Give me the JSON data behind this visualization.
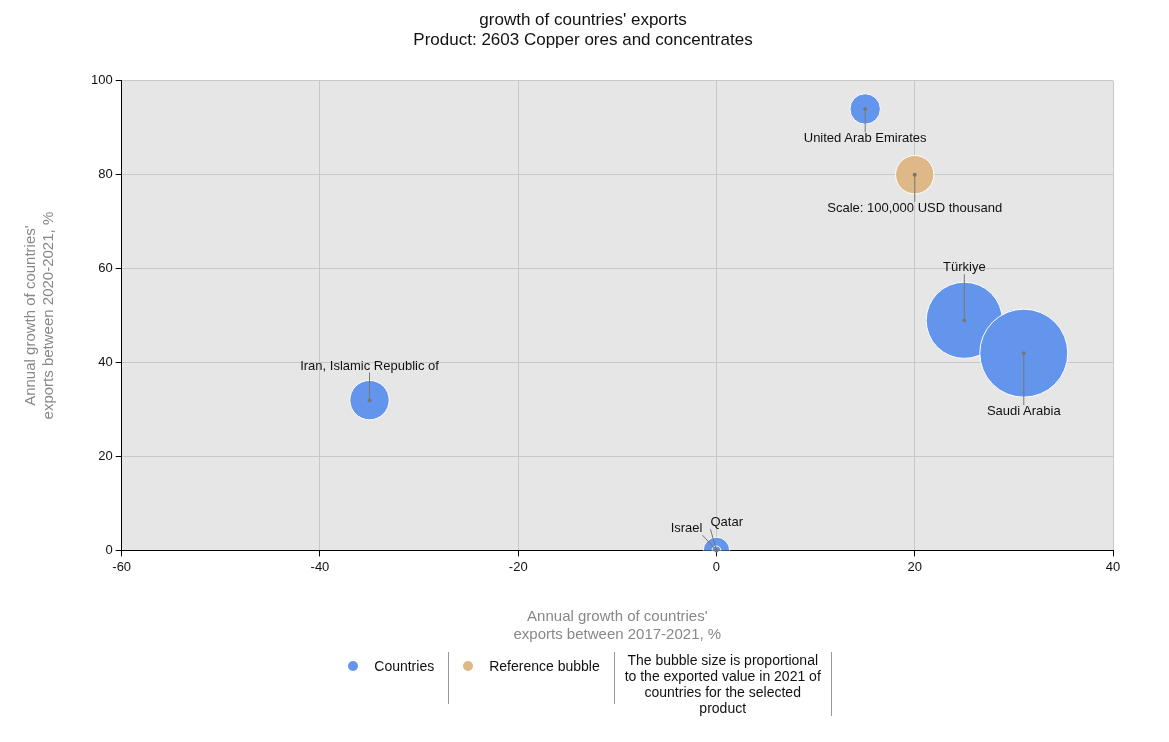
{
  "chart_data": {
    "type": "bubble",
    "title": "growth of countries' exports",
    "subtitle": "Product: 2603 Copper ores and concentrates",
    "xlabel": "Annual growth of countries' exports between 2017-2021, %",
    "ylabel": "Annual growth of countries' exports between 2020-2021, %",
    "xlim": [
      -60,
      40
    ],
    "xticks": [
      -60,
      -40,
      -20,
      0,
      20,
      40
    ],
    "ylim": [
      0,
      100
    ],
    "yticks": [
      0,
      20,
      40,
      60,
      80,
      100
    ],
    "grid": true,
    "legend": "bottom",
    "series": [
      {
        "name": "Countries",
        "color": "#6495ed",
        "x": [
          15,
          25,
          31,
          -35,
          0,
          0
        ],
        "values": [
          94,
          49,
          42,
          32,
          0,
          0
        ],
        "sizes": [
          0.12,
          0.75,
          1,
          0.2,
          0.09,
          0.01
        ]
      },
      {
        "name": "Reference bubble",
        "color": "#deb887",
        "x": [
          20
        ],
        "values": [
          80
        ],
        "sizes": [
          0.19
        ]
      }
    ],
    "annotations": [
      {
        "text": "United Arab Emirates",
        "x": 15,
        "y": 94
      },
      {
        "text": "Türkiye",
        "x": 25,
        "y": 49
      },
      {
        "text": "Saudi Arabia",
        "x": 31,
        "y": 42
      },
      {
        "text": "Iran, Islamic Republic of",
        "x": -35,
        "y": 32
      },
      {
        "text": "Qatar",
        "x": 0,
        "y": 0
      },
      {
        "text": "Israel",
        "x": 0,
        "y": 0
      },
      {
        "text": "Scale: 100,000 USD thousand",
        "x": 20,
        "y": 80
      },
      "The bubble size is proportional to the exported value in 2021 of countries for the selected product"
    ]
  }
}
